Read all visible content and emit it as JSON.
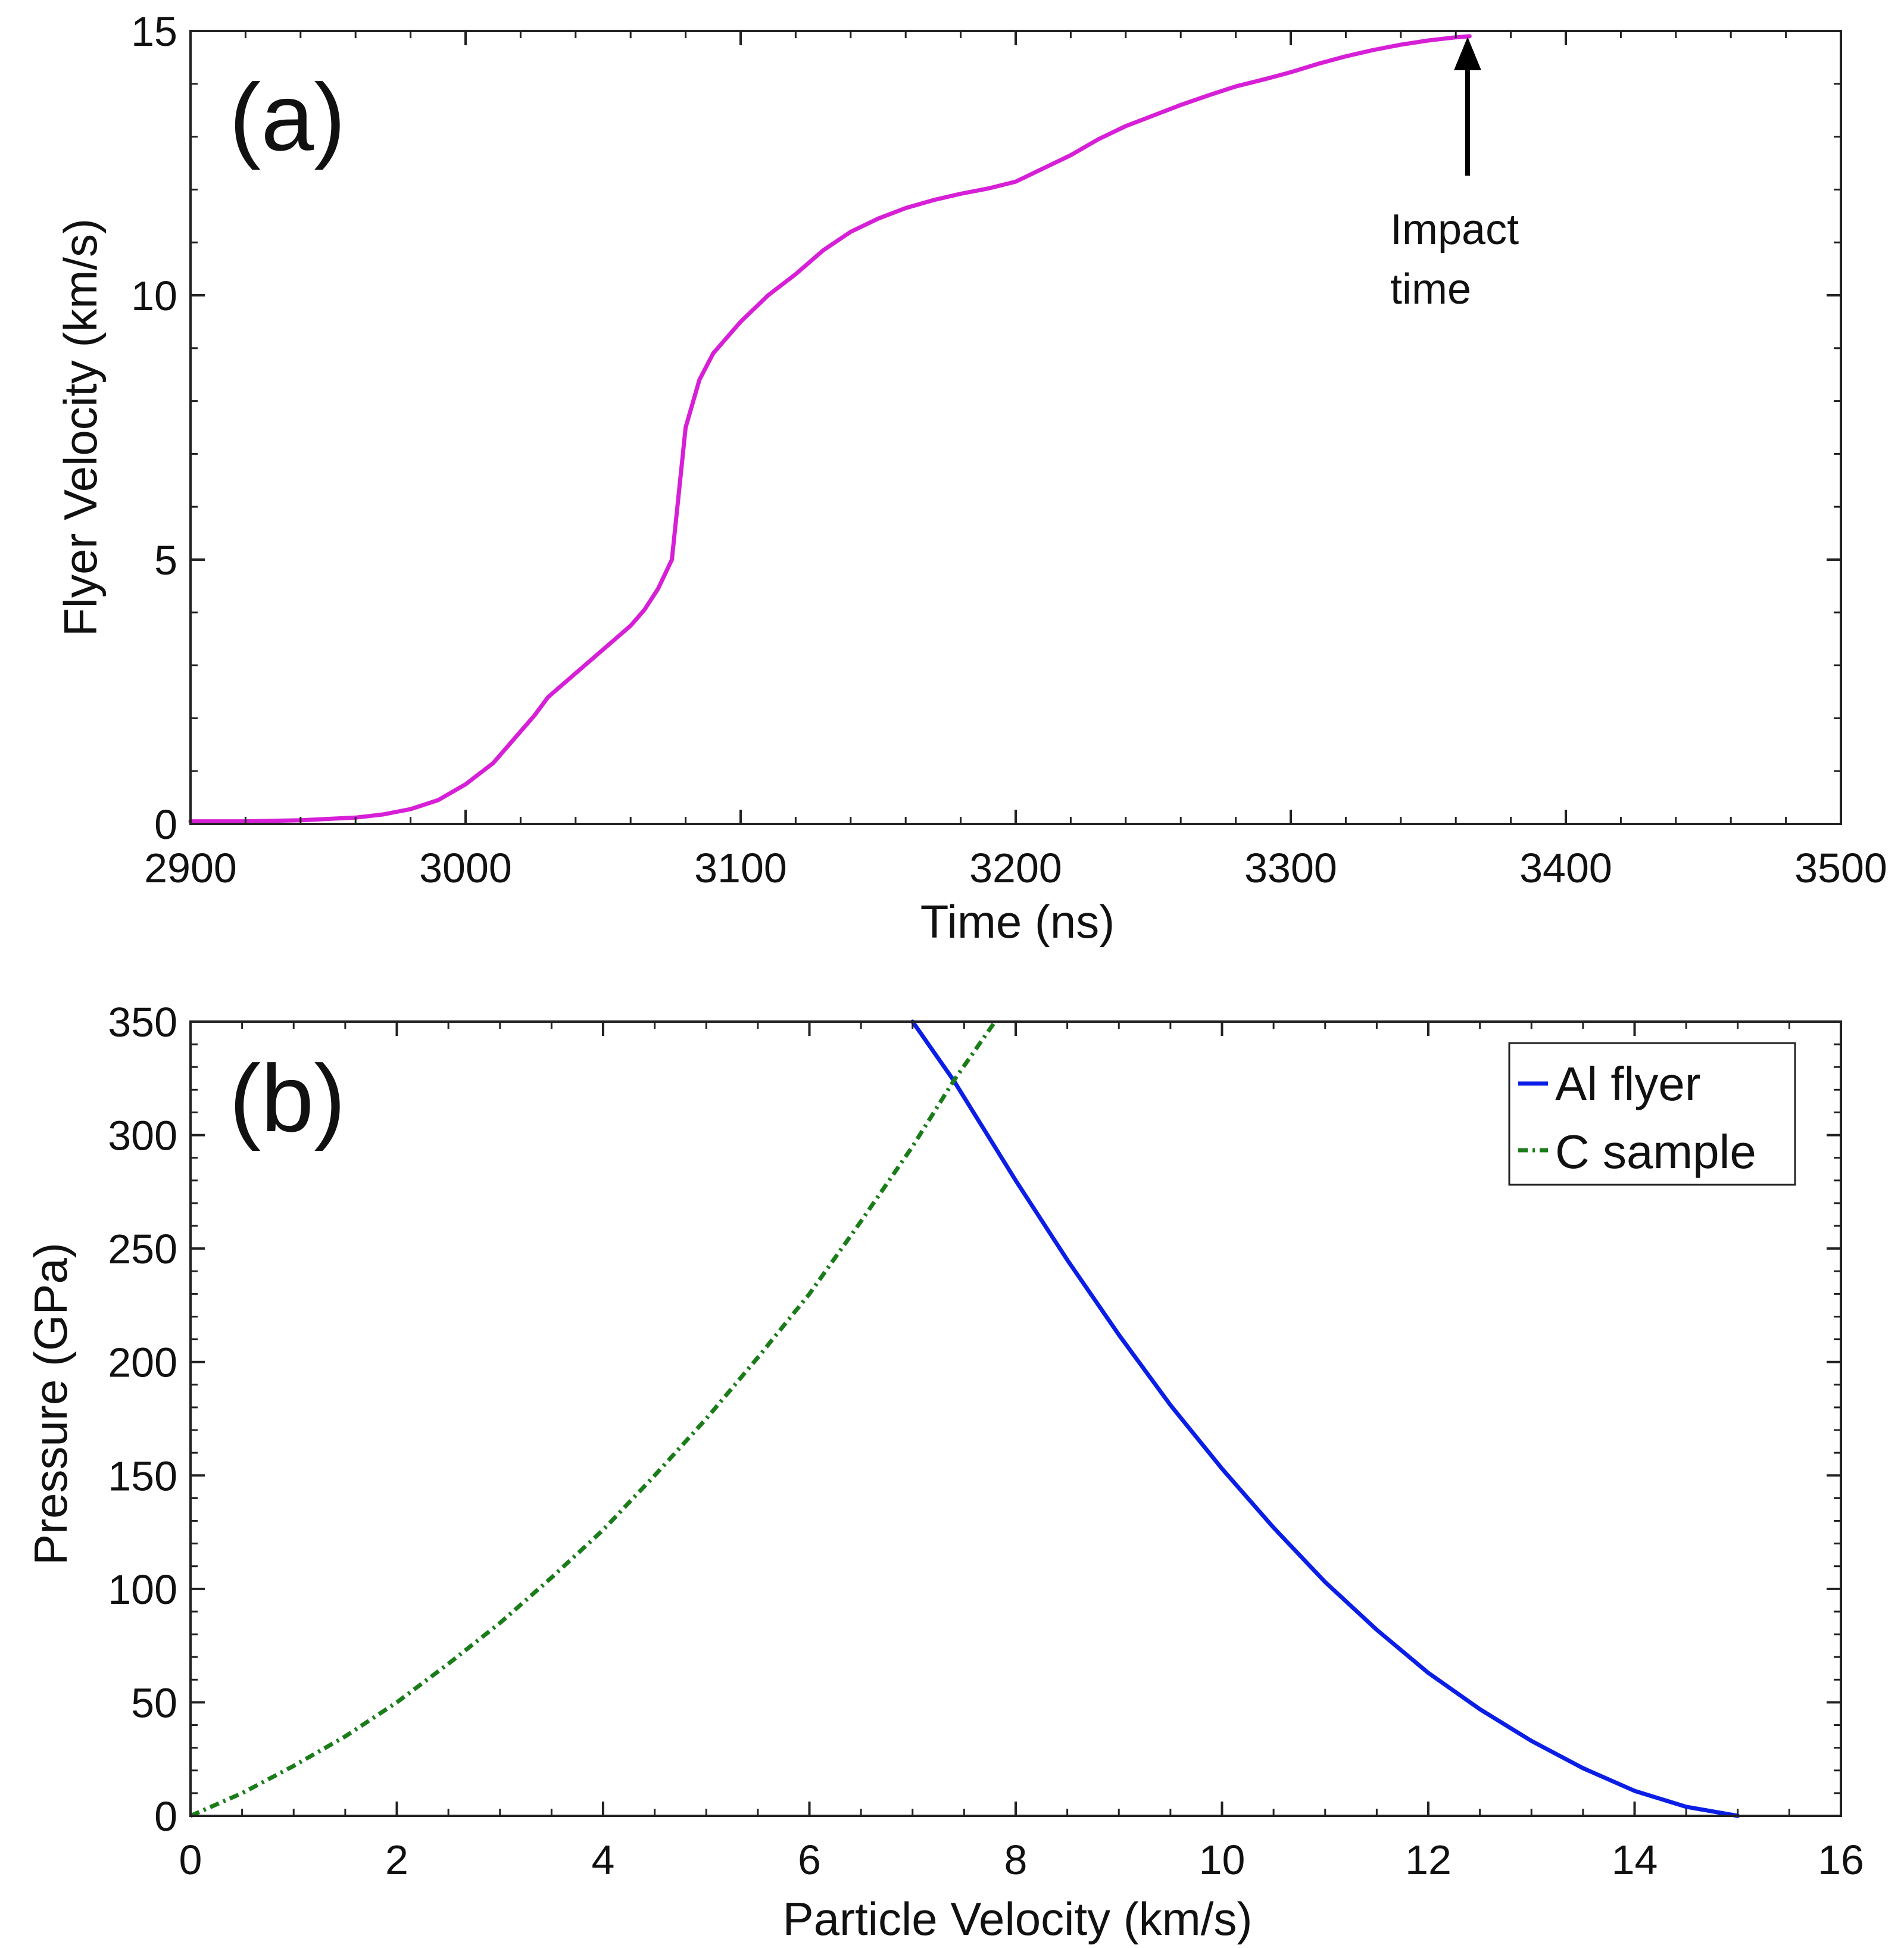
{
  "chart_data": [
    {
      "type": "line",
      "panel_label": "(a)",
      "xlabel": "Time (ns)",
      "ylabel": "Flyer Velocity (km/s)",
      "xlim": [
        2900,
        3500
      ],
      "ylim": [
        0,
        15
      ],
      "xticks": [
        2900,
        3000,
        3100,
        3200,
        3300,
        3400,
        3500
      ],
      "yticks": [
        0,
        5,
        10,
        15
      ],
      "grid": false,
      "annotation": {
        "line1": "Impact",
        "line2": "time",
        "points_to_x": 3365,
        "points_to_y": 14.9
      },
      "series": [
        {
          "name": "Flyer velocity",
          "color": "#d61fd6",
          "x": [
            2900,
            2920,
            2940,
            2960,
            2970,
            2980,
            2990,
            3000,
            3010,
            3020,
            3025,
            3030,
            3040,
            3050,
            3060,
            3065,
            3070,
            3075,
            3078,
            3080,
            3085,
            3090,
            3095,
            3100,
            3110,
            3120,
            3130,
            3140,
            3150,
            3160,
            3170,
            3180,
            3190,
            3200,
            3210,
            3220,
            3230,
            3240,
            3250,
            3260,
            3270,
            3280,
            3290,
            3300,
            3310,
            3320,
            3330,
            3340,
            3350,
            3360,
            3365
          ],
          "y": [
            0.05,
            0.05,
            0.07,
            0.12,
            0.18,
            0.28,
            0.45,
            0.75,
            1.15,
            1.75,
            2.05,
            2.4,
            2.85,
            3.3,
            3.75,
            4.05,
            4.45,
            5.0,
            6.5,
            7.5,
            8.4,
            8.9,
            9.2,
            9.5,
            10.0,
            10.4,
            10.85,
            11.2,
            11.45,
            11.65,
            11.8,
            11.92,
            12.02,
            12.15,
            12.4,
            12.65,
            12.95,
            13.2,
            13.4,
            13.6,
            13.78,
            13.95,
            14.08,
            14.22,
            14.38,
            14.52,
            14.64,
            14.74,
            14.82,
            14.88,
            14.9
          ]
        }
      ]
    },
    {
      "type": "line",
      "panel_label": "(b)",
      "xlabel": "Particle Velocity (km/s)",
      "ylabel": "Pressure (GPa)",
      "xlim": [
        0,
        16
      ],
      "ylim": [
        0,
        350
      ],
      "xticks": [
        0,
        2,
        4,
        6,
        8,
        10,
        12,
        14,
        16
      ],
      "yticks": [
        0,
        50,
        100,
        150,
        200,
        250,
        300,
        350
      ],
      "grid": false,
      "legend_position": "top-right",
      "series": [
        {
          "name": "Al flyer",
          "color": "#0a1ee6",
          "style": "solid",
          "x": [
            7.0,
            7.4,
            8.0,
            8.5,
            9.0,
            9.5,
            10.0,
            10.5,
            11.0,
            11.5,
            12.0,
            12.5,
            13.0,
            13.5,
            14.0,
            14.5,
            15.0
          ],
          "y": [
            350,
            324,
            280,
            245,
            212,
            181,
            153,
            127,
            103,
            82,
            63,
            47,
            33,
            21,
            11,
            4,
            0
          ]
        },
        {
          "name": "C sample",
          "color": "#1a7d1a",
          "style": "dashdot",
          "x": [
            0,
            0.5,
            1.0,
            1.5,
            2.0,
            2.5,
            3.0,
            3.5,
            4.0,
            4.5,
            5.0,
            5.5,
            6.0,
            6.5,
            7.0,
            7.4,
            7.8
          ],
          "y": [
            0,
            10,
            22,
            35,
            50,
            67,
            85,
            105,
            126,
            150,
            175,
            202,
            230,
            262,
            295,
            324,
            350
          ]
        }
      ]
    }
  ]
}
